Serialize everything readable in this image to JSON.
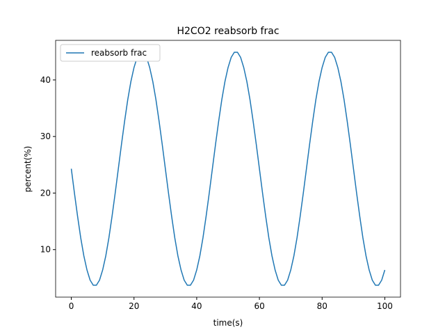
{
  "chart_data": {
    "type": "line",
    "title": "H2CO2 reabsorb frac",
    "x_label": "time(s)",
    "y_label": "percent(%)",
    "x": [
      0,
      1,
      2,
      3,
      4,
      5,
      6,
      7,
      8,
      9,
      10,
      11,
      12,
      13,
      14,
      15,
      16,
      17,
      18,
      19,
      20,
      21,
      22,
      23,
      24,
      25,
      26,
      27,
      28,
      29,
      30,
      31,
      32,
      33,
      34,
      35,
      36,
      37,
      38,
      39,
      40,
      41,
      42,
      43,
      44,
      45,
      46,
      47,
      48,
      49,
      50,
      51,
      52,
      53,
      54,
      55,
      56,
      57,
      58,
      59,
      60,
      61,
      62,
      63,
      64,
      65,
      66,
      67,
      68,
      69,
      70,
      71,
      72,
      73,
      74,
      75,
      76,
      77,
      78,
      79,
      80,
      81,
      82,
      83,
      84,
      85,
      86,
      87,
      88,
      89,
      90,
      91,
      92,
      93,
      94,
      95,
      96,
      97,
      98,
      99,
      100
    ],
    "series": [
      {
        "name": "reabsorb frac",
        "color": "#1f77b4",
        "values": [
          24.3,
          20.0,
          15.9,
          12.1,
          8.9,
          6.4,
          4.6,
          3.7,
          3.7,
          4.6,
          6.4,
          8.9,
          12.1,
          15.9,
          20.0,
          24.3,
          28.6,
          32.7,
          36.5,
          39.7,
          42.2,
          44.0,
          44.9,
          44.9,
          44.0,
          42.2,
          39.7,
          36.5,
          32.7,
          28.6,
          24.3,
          20.0,
          15.9,
          12.1,
          8.9,
          6.4,
          4.6,
          3.7,
          3.7,
          4.6,
          6.4,
          8.9,
          12.1,
          15.9,
          20.0,
          24.3,
          28.6,
          32.7,
          36.5,
          39.7,
          42.2,
          44.0,
          44.9,
          44.9,
          44.0,
          42.2,
          39.7,
          36.5,
          32.7,
          28.6,
          24.3,
          20.0,
          15.9,
          12.1,
          8.9,
          6.4,
          4.6,
          3.7,
          3.7,
          4.6,
          6.4,
          8.9,
          12.1,
          15.9,
          20.0,
          24.3,
          28.6,
          32.7,
          36.5,
          39.7,
          42.2,
          44.0,
          44.9,
          44.9,
          44.0,
          42.2,
          39.7,
          36.5,
          32.7,
          28.6,
          24.3,
          20.0,
          15.9,
          12.1,
          8.9,
          6.4,
          4.6,
          3.7,
          3.7,
          4.6,
          6.4
        ]
      }
    ],
    "xlim": [
      -5,
      105
    ],
    "xticks": [
      0,
      20,
      40,
      60,
      80,
      100
    ],
    "ylim": [
      1.6,
      47.0
    ],
    "yticks": [
      10,
      20,
      30,
      40
    ],
    "legend": "upper left",
    "grid": false
  }
}
